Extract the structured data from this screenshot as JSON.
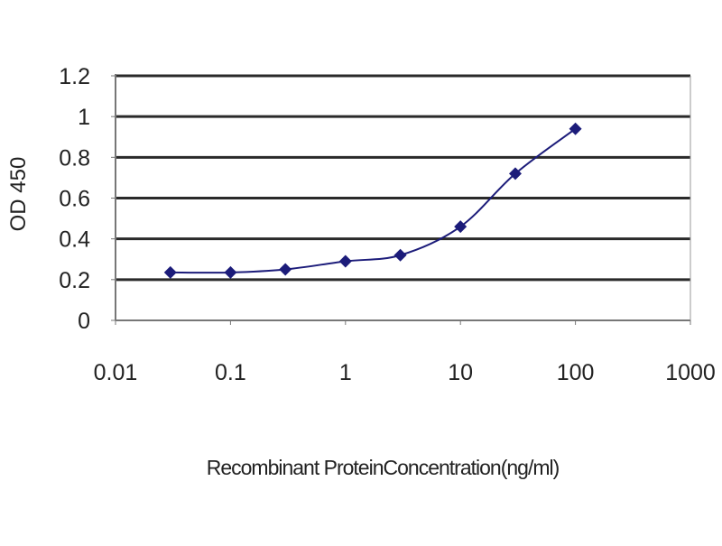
{
  "chart_data": {
    "type": "line",
    "title": "",
    "xlabel": "Recombinant ProteinConcentration(ng/ml)",
    "ylabel": "OD 450",
    "x_scale": "log",
    "xlim": [
      0.01,
      1000
    ],
    "ylim": [
      0,
      1.2
    ],
    "x_ticks": [
      "0.01",
      "0.1",
      "1",
      "10",
      "100",
      "1000"
    ],
    "y_ticks": [
      "0",
      "0.2",
      "0.4",
      "0.6",
      "0.8",
      "1",
      "1.2"
    ],
    "grid": "horizontal",
    "legend": "none",
    "series": [
      {
        "color": "#1c1c7a",
        "marker": "diamond",
        "x": [
          0.03,
          0.1,
          0.3,
          1,
          3,
          10,
          30,
          100
        ],
        "y": [
          0.235,
          0.235,
          0.25,
          0.29,
          0.32,
          0.46,
          0.72,
          0.94
        ]
      }
    ]
  }
}
